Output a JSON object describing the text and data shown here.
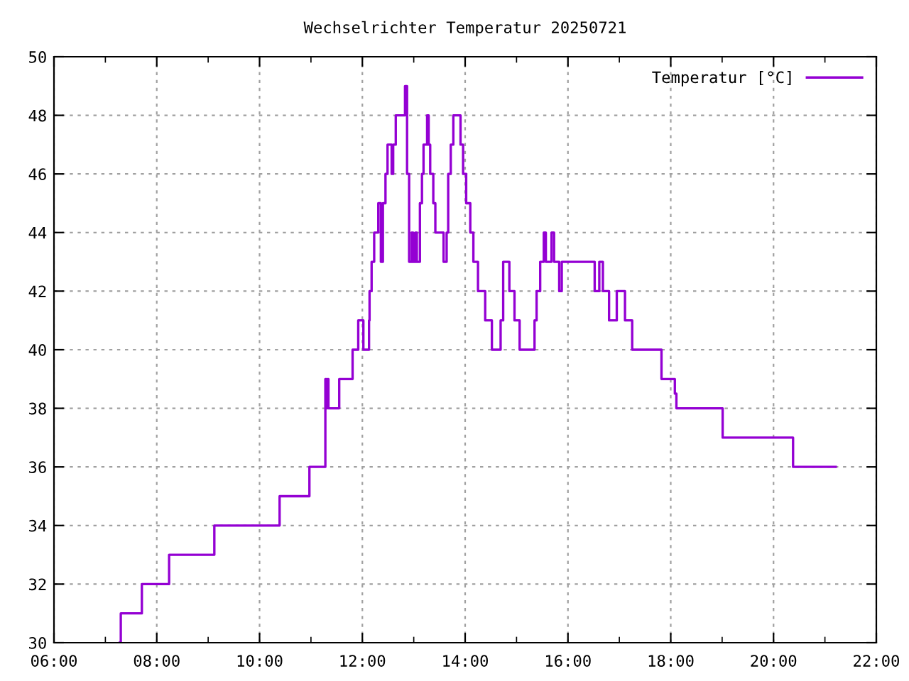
{
  "chart_data": {
    "type": "step",
    "title": "Wechselrichter Temperatur 20250721",
    "series": [
      {
        "name": "Temperatur [°C]",
        "color": "#9400d3",
        "x": [
          7.28,
          7.3,
          7.71,
          8.24,
          9.12,
          10.39,
          10.97,
          11.28,
          11.3,
          11.32,
          11.34,
          11.55,
          11.81,
          11.92,
          12.02,
          12.13,
          12.14,
          12.18,
          12.23,
          12.31,
          12.36,
          12.4,
          12.45,
          12.49,
          12.57,
          12.6,
          12.65,
          12.83,
          12.87,
          12.91,
          12.96,
          12.99,
          13.03,
          13.06,
          13.12,
          13.16,
          13.19,
          13.26,
          13.29,
          13.32,
          13.38,
          13.42,
          13.49,
          13.58,
          13.64,
          13.67,
          13.72,
          13.77,
          13.91,
          13.96,
          14.02,
          14.1,
          14.16,
          14.25,
          14.39,
          14.52,
          14.69,
          14.74,
          14.86,
          14.96,
          15.06,
          15.35,
          15.39,
          15.46,
          15.53,
          15.57,
          15.68,
          15.73,
          15.83,
          15.88,
          16.52,
          16.61,
          16.68,
          16.8,
          16.95,
          17.11,
          17.25,
          17.82,
          18.08,
          18.11,
          19.01,
          20.38,
          21.21
        ],
        "values": [
          30,
          31,
          32,
          33,
          34,
          35,
          36,
          39,
          38,
          39,
          38,
          39,
          40,
          41,
          40,
          41,
          42,
          43,
          44,
          45,
          43,
          45,
          46,
          47,
          46,
          47,
          48,
          49,
          46,
          43,
          44,
          43,
          44,
          43,
          45,
          46,
          47,
          48,
          47,
          46,
          45,
          44,
          44,
          43,
          44,
          46,
          47,
          48,
          47,
          46,
          45,
          44,
          43,
          42,
          41,
          40,
          41,
          43,
          42,
          41,
          40,
          41,
          42,
          43,
          44,
          43,
          44,
          43,
          42,
          43,
          42,
          43,
          42,
          41,
          42,
          41,
          40,
          39,
          38.5,
          38,
          37,
          36,
          36
        ]
      }
    ],
    "xlim": [
      6,
      22
    ],
    "xticks": [
      {
        "value": 6,
        "label": "06:00"
      },
      {
        "value": 8,
        "label": "08:00"
      },
      {
        "value": 10,
        "label": "10:00"
      },
      {
        "value": 12,
        "label": "12:00"
      },
      {
        "value": 14,
        "label": "14:00"
      },
      {
        "value": 16,
        "label": "16:00"
      },
      {
        "value": 18,
        "label": "18:00"
      },
      {
        "value": 20,
        "label": "20:00"
      },
      {
        "value": 22,
        "label": "22:00"
      }
    ],
    "ylim": [
      30,
      50
    ],
    "yticks": [
      30,
      32,
      34,
      36,
      38,
      40,
      42,
      44,
      46,
      48,
      50
    ],
    "grid": true,
    "legend": "top right"
  }
}
